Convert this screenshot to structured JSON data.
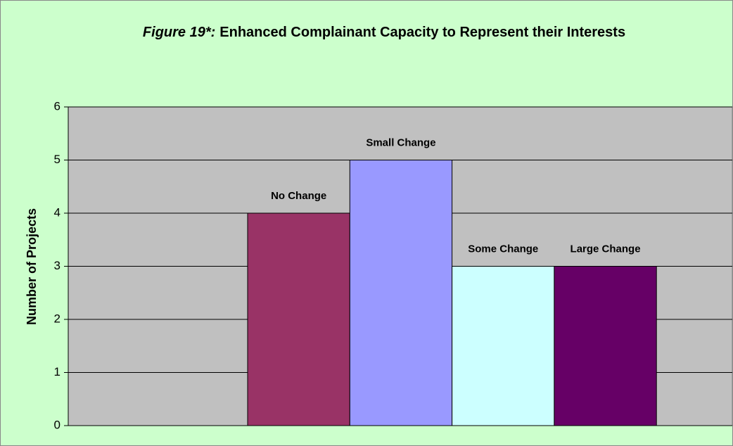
{
  "chart_data": {
    "type": "bar",
    "title": {
      "figure": "Figure 19*:",
      "text": "Enhanced Complainant Capacity to Represent their Interests"
    },
    "ylabel": "Number of Projects",
    "categories": [
      "No Change",
      "Small Change",
      "Some Change",
      "Large Change"
    ],
    "values": [
      4,
      5,
      3,
      3
    ],
    "colors": [
      "#993366",
      "#9999ff",
      "#ccffff",
      "#660066"
    ],
    "ylim": [
      0,
      6
    ],
    "yticks": [
      0,
      1,
      2,
      3,
      4,
      5,
      6
    ],
    "grid": true
  }
}
